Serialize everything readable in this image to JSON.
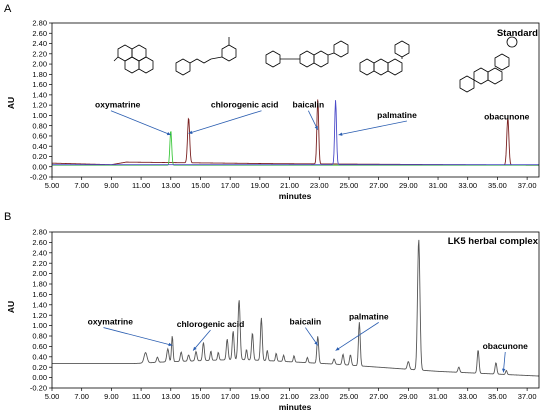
{
  "chart_data": [
    {
      "type": "line",
      "panel": "A",
      "title": "Standard",
      "xlabel": "minutes",
      "ylabel": "AU",
      "xlim": [
        5.0,
        37.8
      ],
      "ylim": [
        -0.2,
        2.8
      ],
      "xticks": [
        "5.00",
        "7.00",
        "9.00",
        "11.00",
        "13.00",
        "15.00",
        "17.00",
        "19.00",
        "21.00",
        "23.00",
        "25.00",
        "27.00",
        "29.00",
        "31.00",
        "33.00",
        "35.00",
        "37.00"
      ],
      "yticks": [
        "-0.20",
        "0.00",
        "0.20",
        "0.40",
        "0.60",
        "0.80",
        "1.00",
        "1.20",
        "1.40",
        "1.60",
        "1.80",
        "2.00",
        "2.20",
        "2.40",
        "2.60",
        "2.80"
      ],
      "grid": false,
      "series": [
        {
          "color": "#7a2020",
          "baseline": [
            [
              5.0,
              0.07
            ],
            [
              9.0,
              0.04
            ],
            [
              10.0,
              0.09
            ],
            [
              20.0,
              0.06
            ],
            [
              37.8,
              0.03
            ]
          ],
          "peaks": [
            [
              14.2,
              0.88,
              0.07
            ],
            [
              22.9,
              1.26,
              0.06
            ],
            [
              35.7,
              0.92,
              0.07
            ]
          ]
        },
        {
          "color": "#3ec83e",
          "baseline": [
            [
              5.0,
              0.03
            ],
            [
              37.8,
              0.03
            ]
          ],
          "peaks": [
            [
              13.0,
              0.68,
              0.06
            ]
          ]
        },
        {
          "color": "#4a4ac8",
          "baseline": [
            [
              5.0,
              0.04
            ],
            [
              37.8,
              0.04
            ]
          ],
          "peaks": [
            [
              24.1,
              1.26,
              0.06
            ]
          ]
        }
      ],
      "annotations": [
        {
          "text": "oxymatrine",
          "x": 7.9,
          "y": 1.15,
          "arrow_to": [
            13.0,
            0.62
          ]
        },
        {
          "text": "chlorogenic acid",
          "x": 15.7,
          "y": 1.15,
          "arrow_to": [
            14.2,
            0.65
          ]
        },
        {
          "text": "baicalin",
          "x": 21.2,
          "y": 1.15,
          "arrow_to": [
            22.9,
            0.72
          ]
        },
        {
          "text": "palmatine",
          "x": 26.9,
          "y": 0.95,
          "arrow_to": [
            24.3,
            0.62
          ]
        },
        {
          "text": "obacunone",
          "x": 34.1,
          "y": 0.92,
          "arrow_to": null
        }
      ]
    },
    {
      "type": "line",
      "panel": "B",
      "title": "LK5 herbal complex",
      "xlabel": "minutes",
      "ylabel": "AU",
      "xlim": [
        5.0,
        37.8
      ],
      "ylim": [
        -0.2,
        2.8
      ],
      "xticks": [
        "5.00",
        "7.00",
        "9.00",
        "11.00",
        "13.00",
        "15.00",
        "17.00",
        "19.00",
        "21.00",
        "23.00",
        "25.00",
        "27.00",
        "29.00",
        "31.00",
        "33.00",
        "35.00",
        "37.00"
      ],
      "yticks": [
        "-0.20",
        "0.00",
        "0.20",
        "0.40",
        "0.60",
        "0.80",
        "1.00",
        "1.20",
        "1.40",
        "1.60",
        "1.80",
        "2.00",
        "2.20",
        "2.40",
        "2.60",
        "2.80"
      ],
      "grid": false,
      "series": [
        {
          "color": "#555555",
          "baseline": [
            [
              5.0,
              0.27
            ],
            [
              10.5,
              0.27
            ],
            [
              12.5,
              0.3
            ],
            [
              17.5,
              0.35
            ],
            [
              20.0,
              0.32
            ],
            [
              24.0,
              0.26
            ],
            [
              28.0,
              0.18
            ],
            [
              31.0,
              0.12
            ],
            [
              37.8,
              0.03
            ]
          ],
          "peaks": [
            [
              11.3,
              0.2,
              0.1
            ],
            [
              12.1,
              0.1,
              0.06
            ],
            [
              12.8,
              0.25,
              0.07
            ],
            [
              13.1,
              0.5,
              0.05
            ],
            [
              13.7,
              0.18,
              0.06
            ],
            [
              14.2,
              0.12,
              0.06
            ],
            [
              14.7,
              0.18,
              0.06
            ],
            [
              15.2,
              0.35,
              0.06
            ],
            [
              15.7,
              0.18,
              0.05
            ],
            [
              16.2,
              0.15,
              0.05
            ],
            [
              16.8,
              0.4,
              0.06
            ],
            [
              17.2,
              0.55,
              0.06
            ],
            [
              17.6,
              1.15,
              0.07
            ],
            [
              18.1,
              0.2,
              0.05
            ],
            [
              18.5,
              0.52,
              0.06
            ],
            [
              19.1,
              0.82,
              0.06
            ],
            [
              19.5,
              0.2,
              0.05
            ],
            [
              20.1,
              0.15,
              0.05
            ],
            [
              20.6,
              0.12,
              0.05
            ],
            [
              21.3,
              0.12,
              0.05
            ],
            [
              22.2,
              0.1,
              0.05
            ],
            [
              22.9,
              0.52,
              0.06
            ],
            [
              24.0,
              0.1,
              0.06
            ],
            [
              24.6,
              0.2,
              0.06
            ],
            [
              25.1,
              0.2,
              0.06
            ],
            [
              25.7,
              0.84,
              0.06
            ],
            [
              29.0,
              0.15,
              0.07
            ],
            [
              29.7,
              2.52,
              0.08
            ],
            [
              32.4,
              0.1,
              0.06
            ],
            [
              33.7,
              0.45,
              0.06
            ],
            [
              34.9,
              0.22,
              0.06
            ],
            [
              35.6,
              0.08,
              0.05
            ]
          ]
        }
      ],
      "annotations": [
        {
          "text": "oxymatrine",
          "x": 7.4,
          "y": 1.02,
          "arrow_to": [
            13.1,
            0.62
          ]
        },
        {
          "text": "chlorogenic acid",
          "x": 13.4,
          "y": 0.97,
          "arrow_to": [
            14.5,
            0.52
          ]
        },
        {
          "text": "baicalin",
          "x": 21.0,
          "y": 1.02,
          "arrow_to": [
            22.9,
            0.62
          ]
        },
        {
          "text": "palmatine",
          "x": 25.0,
          "y": 1.12,
          "arrow_to": [
            24.1,
            0.52
          ]
        },
        {
          "text": "obacunone",
          "x": 34.0,
          "y": 0.55,
          "arrow_to": [
            35.4,
            0.1
          ]
        }
      ]
    }
  ]
}
